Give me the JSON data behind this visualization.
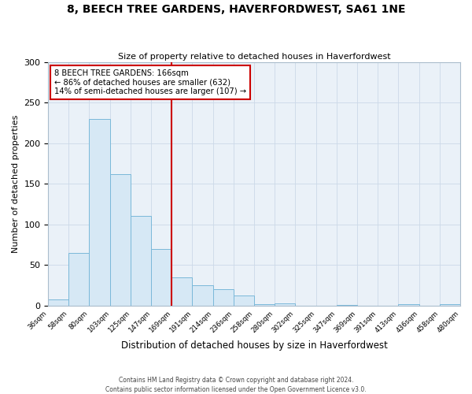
{
  "title": "8, BEECH TREE GARDENS, HAVERFORDWEST, SA61 1NE",
  "subtitle": "Size of property relative to detached houses in Haverfordwest",
  "xlabel": "Distribution of detached houses by size in Haverfordwest",
  "ylabel": "Number of detached properties",
  "bins": [
    36,
    58,
    80,
    103,
    125,
    147,
    169,
    191,
    214,
    236,
    258,
    280,
    302,
    325,
    347,
    369,
    391,
    413,
    436,
    458,
    480
  ],
  "counts": [
    8,
    65,
    230,
    162,
    110,
    70,
    35,
    25,
    20,
    12,
    2,
    3,
    0,
    0,
    1,
    0,
    0,
    2,
    0,
    2
  ],
  "bar_facecolor": "#d6e8f5",
  "bar_edgecolor": "#7ab8d9",
  "vline_x": 169,
  "vline_color": "#cc0000",
  "annotation_title": "8 BEECH TREE GARDENS: 166sqm",
  "annotation_line1": "← 86% of detached houses are smaller (632)",
  "annotation_line2": "14% of semi-detached houses are larger (107) →",
  "annotation_box_edgecolor": "#cc0000",
  "ylim": [
    0,
    300
  ],
  "yticks": [
    0,
    50,
    100,
    150,
    200,
    250,
    300
  ],
  "tick_labels": [
    "36sqm",
    "58sqm",
    "80sqm",
    "103sqm",
    "125sqm",
    "147sqm",
    "169sqm",
    "191sqm",
    "214sqm",
    "236sqm",
    "258sqm",
    "280sqm",
    "302sqm",
    "325sqm",
    "347sqm",
    "369sqm",
    "391sqm",
    "413sqm",
    "436sqm",
    "458sqm",
    "480sqm"
  ],
  "footer_line1": "Contains HM Land Registry data © Crown copyright and database right 2024.",
  "footer_line2": "Contains public sector information licensed under the Open Government Licence v3.0.",
  "grid_color": "#ccd9e8",
  "background_color": "#eaf1f8",
  "fig_width": 6.0,
  "fig_height": 5.0,
  "dpi": 100
}
